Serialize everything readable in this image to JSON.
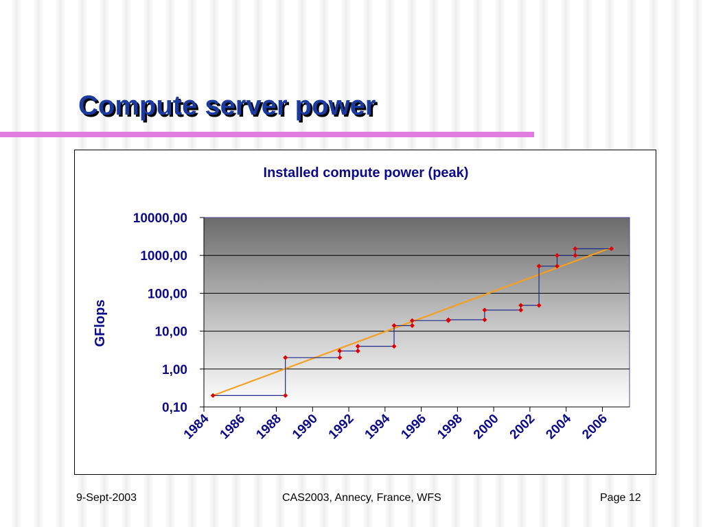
{
  "slide": {
    "title": "Compute server power"
  },
  "footer": {
    "date": "9-Sept-2003",
    "conference": "CAS2003, Annecy, France, WFS",
    "page": "Page 12"
  },
  "chart_data": {
    "type": "line",
    "title": "Installed compute power (peak)",
    "xlabel": "",
    "ylabel": "GFlops",
    "y_scale": "log",
    "ylim": [
      0.1,
      10000
    ],
    "xlim": [
      1984,
      2007.5
    ],
    "x_ticks": [
      "1984",
      "1986",
      "1988",
      "1990",
      "1992",
      "1994",
      "1996",
      "1998",
      "2000",
      "2002",
      "2004",
      "2006"
    ],
    "y_ticks": [
      {
        "value": 0.1,
        "label": "0,10"
      },
      {
        "value": 1,
        "label": "1,00"
      },
      {
        "value": 10,
        "label": "10,00"
      },
      {
        "value": 100,
        "label": "100,00"
      },
      {
        "value": 1000,
        "label": "1000,00"
      },
      {
        "value": 10000,
        "label": "10000,00"
      }
    ],
    "grid": true,
    "legend": "none",
    "series": [
      {
        "kind": "step",
        "color": "#1c2a8a",
        "marker_color": "#e00000",
        "points": [
          [
            1984.5,
            0.2
          ],
          [
            1988.5,
            0.2
          ],
          [
            1988.5,
            2.0
          ],
          [
            1991.5,
            2.0
          ],
          [
            1991.5,
            3.0
          ],
          [
            1992.5,
            3.0
          ],
          [
            1992.5,
            4.0
          ],
          [
            1994.5,
            4.0
          ],
          [
            1994.5,
            14
          ],
          [
            1995.5,
            14
          ],
          [
            1995.5,
            19
          ],
          [
            1997.5,
            19
          ],
          [
            1997.5,
            20
          ],
          [
            1999.5,
            20
          ],
          [
            1999.5,
            36
          ],
          [
            2001.5,
            36
          ],
          [
            2001.5,
            48
          ],
          [
            2002.5,
            48
          ],
          [
            2002.5,
            520
          ],
          [
            2003.5,
            520
          ],
          [
            2003.5,
            1000
          ],
          [
            2004.5,
            1000
          ],
          [
            2004.5,
            1500
          ],
          [
            2006.5,
            1500
          ]
        ]
      },
      {
        "kind": "trend",
        "color": "#f5a020",
        "points": [
          [
            1984.5,
            0.2
          ],
          [
            2006.5,
            1600
          ]
        ]
      }
    ]
  }
}
